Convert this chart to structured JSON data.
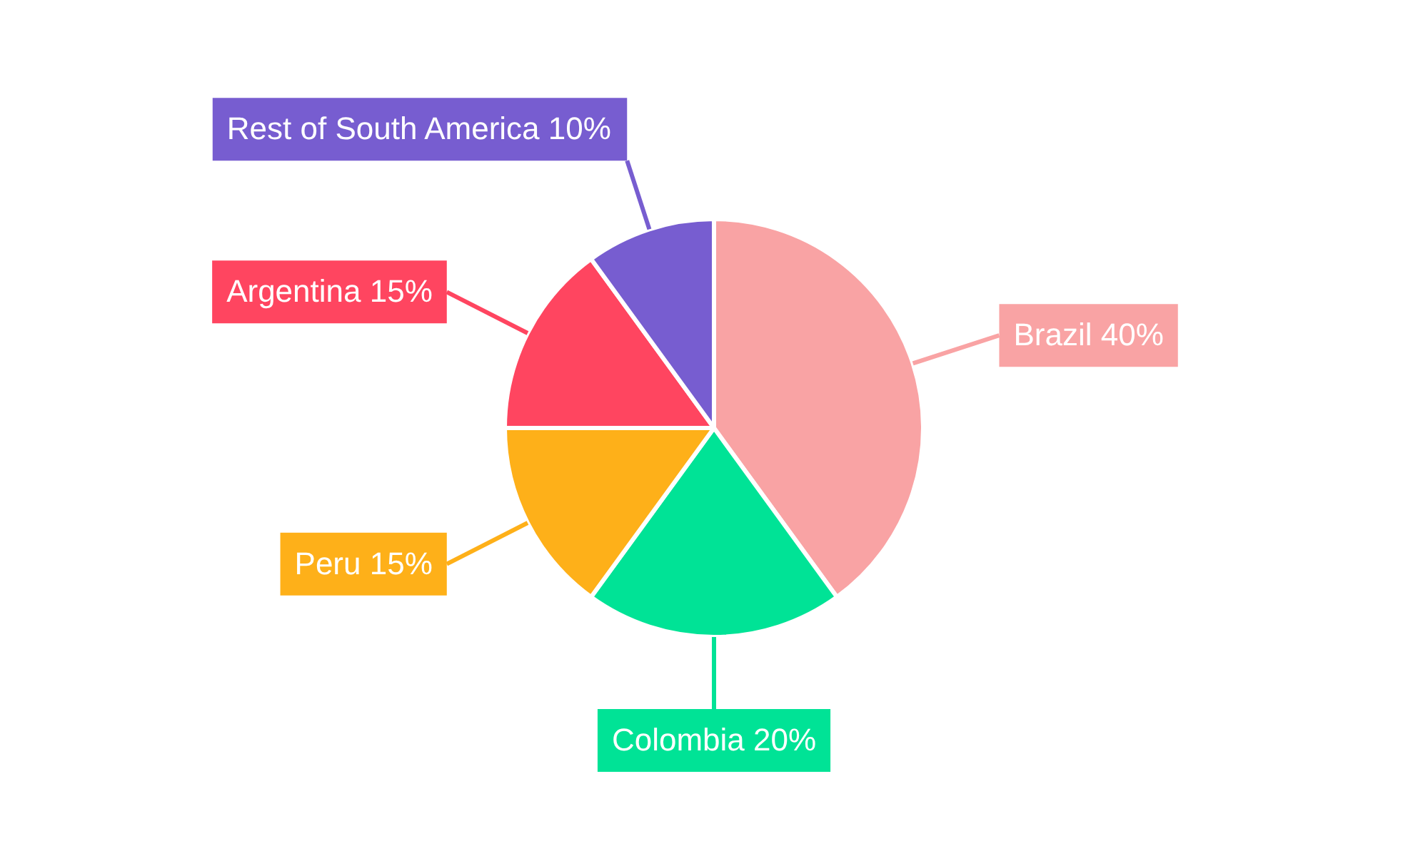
{
  "chart_data": {
    "type": "pie",
    "categories": [
      "Brazil",
      "Colombia",
      "Peru",
      "Argentina",
      "Rest of South America"
    ],
    "values": [
      40,
      20,
      15,
      15,
      10
    ],
    "colors": [
      "#f9a3a4",
      "#00e396",
      "#feb019",
      "#ff4560",
      "#775dd0"
    ],
    "value_labels": [
      "40%",
      "20%",
      "15%",
      "15%",
      "10%"
    ],
    "legend": false
  }
}
